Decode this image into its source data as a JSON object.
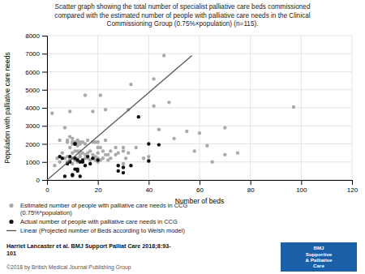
{
  "chart_data": {
    "type": "scatter",
    "title": "Scatter graph showing the total number of specialist palliative care beds commissioned\ncompared with the estimated number of people with palliative care needs in the Clinical\nCommissioning Group (0.75%×population) (n=115).",
    "x_label": "Number of beds",
    "y_label": "Population with palliative care needs",
    "xlim": [
      0,
      120
    ],
    "ylim": [
      0,
      8000
    ],
    "xticks": [
      0,
      20,
      40,
      60,
      80,
      100,
      120
    ],
    "yticks": [
      0,
      1000,
      2000,
      3000,
      4000,
      5000,
      6000,
      7000,
      8000
    ],
    "grid": true,
    "series": [
      {
        "name": "Estimated number of people with palliative care needs in CCG\n(0.75%*population)",
        "color": "#aaaaaa",
        "type": "scatter",
        "x": [
          2,
          3,
          4,
          5,
          5,
          6,
          7,
          7,
          8,
          8,
          8,
          8,
          9,
          9,
          9,
          9,
          9,
          10,
          10,
          10,
          10,
          10,
          10,
          11,
          11,
          11,
          11,
          12,
          12,
          12,
          12,
          12,
          12,
          13,
          13,
          13,
          13,
          13,
          14,
          14,
          14,
          15,
          15,
          15,
          15,
          16,
          16,
          16,
          17,
          17,
          18,
          18,
          18,
          19,
          19,
          19,
          20,
          20,
          20,
          20,
          20,
          21,
          21,
          21,
          22,
          22,
          23,
          23,
          23,
          24,
          24,
          25,
          25,
          27,
          27,
          28,
          30,
          30,
          30,
          31,
          32,
          32,
          33,
          35,
          38,
          40,
          40,
          42,
          42,
          44,
          46,
          48,
          50,
          55,
          58,
          60,
          63,
          65,
          70,
          70,
          75,
          97
        ],
        "values": [
          3700,
          800,
          1200,
          1000,
          2200,
          1500,
          1200,
          2900,
          1000,
          1300,
          2200,
          2100,
          1100,
          1200,
          1800,
          2400,
          3800,
          900,
          1200,
          1500,
          2000,
          2100,
          2300,
          1100,
          1600,
          2000,
          2100,
          1000,
          1200,
          1600,
          1900,
          2100,
          2200,
          1300,
          1400,
          1600,
          2000,
          2100,
          1100,
          1500,
          2100,
          1200,
          1400,
          2000,
          4700,
          1200,
          1500,
          2200,
          1100,
          1600,
          1400,
          2100,
          3800,
          1100,
          1300,
          2100,
          1000,
          1200,
          1500,
          1800,
          2100,
          1100,
          1800,
          4700,
          1200,
          1600,
          1400,
          2200,
          3900,
          1100,
          1400,
          1200,
          1600,
          1400,
          1800,
          1500,
          900,
          1600,
          1800,
          1200,
          1500,
          3900,
          5300,
          1800,
          1200,
          1100,
          1300,
          4100,
          5600,
          2800,
          6900,
          4300,
          2300,
          2700,
          1600,
          2600,
          1900,
          1000,
          2900,
          1400,
          1500,
          4050
        ]
      },
      {
        "name": "Actual number of people with palliative care needs in CCG",
        "color": "#111111",
        "type": "scatter",
        "x": [
          5,
          6,
          7,
          8,
          9,
          9,
          10,
          10,
          11,
          11,
          11,
          11,
          12,
          12,
          12,
          13,
          13,
          14,
          14,
          15,
          16,
          17,
          18,
          20,
          28,
          28,
          30,
          30,
          33,
          36,
          40,
          40,
          44
        ],
        "values": [
          1300,
          1200,
          200,
          900,
          1000,
          1300,
          250,
          300,
          600,
          1200,
          2000,
          2000,
          500,
          600,
          1100,
          200,
          1000,
          1000,
          1100,
          800,
          1300,
          900,
          1200,
          1100,
          500,
          800,
          400,
          700,
          800,
          3500,
          2000,
          1050,
          1950
        ]
      },
      {
        "name": "Linear (Projected number of Beds according to Welsh model)",
        "color": "#555555",
        "type": "line",
        "x": [
          0,
          57
        ],
        "values": [
          0,
          6900
        ]
      }
    ],
    "annotations": [
      "Harriet Lancaster et al. BMJ Support Palliat Care 2018;8:93-\n101",
      "©2018 by British Medical Journal Publishing Group",
      "BMJ\nSupportive\n& Palliative\nCare"
    ]
  }
}
